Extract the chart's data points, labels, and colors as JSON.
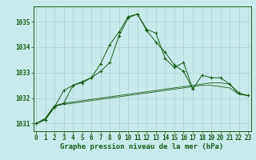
{
  "hours": [
    0,
    1,
    2,
    3,
    4,
    5,
    6,
    7,
    8,
    9,
    10,
    11,
    12,
    13,
    14,
    15,
    16,
    17,
    18,
    19,
    20,
    21,
    22,
    23
  ],
  "line1": [
    1031.0,
    1031.15,
    1031.65,
    1031.8,
    1032.5,
    1032.6,
    1032.8,
    1033.05,
    1033.4,
    1034.45,
    1035.15,
    1035.3,
    1034.65,
    1034.2,
    1033.8,
    1033.3,
    1033.05,
    1032.35,
    1032.9,
    1032.8,
    1032.8,
    1032.55,
    1032.2,
    1032.1
  ],
  "line2": [
    1031.0,
    1031.15,
    1031.65,
    1032.3,
    1032.5,
    1032.65,
    1032.8,
    1033.35,
    1034.1,
    1034.6,
    1035.2,
    1035.3,
    1034.7,
    1034.55,
    1033.55,
    1033.2,
    1033.4,
    1032.35,
    null,
    null,
    null,
    null,
    null,
    null
  ],
  "line3": [
    1031.0,
    1031.2,
    1031.7,
    1031.8,
    1031.85,
    1031.9,
    1031.95,
    1032.0,
    1032.05,
    1032.1,
    1032.15,
    1032.2,
    1032.25,
    1032.3,
    1032.35,
    1032.4,
    1032.45,
    1032.5,
    1032.55,
    1032.6,
    1032.6,
    1032.55,
    1032.15,
    1032.1
  ],
  "line4": [
    1031.0,
    1031.2,
    1031.7,
    1031.75,
    1031.8,
    1031.85,
    1031.9,
    1031.95,
    1032.0,
    1032.05,
    1032.1,
    1032.15,
    1032.2,
    1032.25,
    1032.3,
    1032.35,
    1032.4,
    1032.45,
    1032.5,
    1032.5,
    1032.45,
    1032.4,
    1032.15,
    1032.1
  ],
  "xlabel": "Graphe pression niveau de la mer (hPa)",
  "ylim": [
    1030.7,
    1035.6
  ],
  "yticks": [
    1031,
    1032,
    1033,
    1034,
    1035
  ],
  "xticks": [
    0,
    1,
    2,
    3,
    4,
    5,
    6,
    7,
    8,
    9,
    10,
    11,
    12,
    13,
    14,
    15,
    16,
    17,
    18,
    19,
    20,
    21,
    22,
    23
  ],
  "line_color": "#1a5c1a",
  "bg_color": "#c8eaea",
  "grid_color": "#b0d0d0",
  "xlabel_fontsize": 6.5,
  "tick_fontsize": 5.5
}
